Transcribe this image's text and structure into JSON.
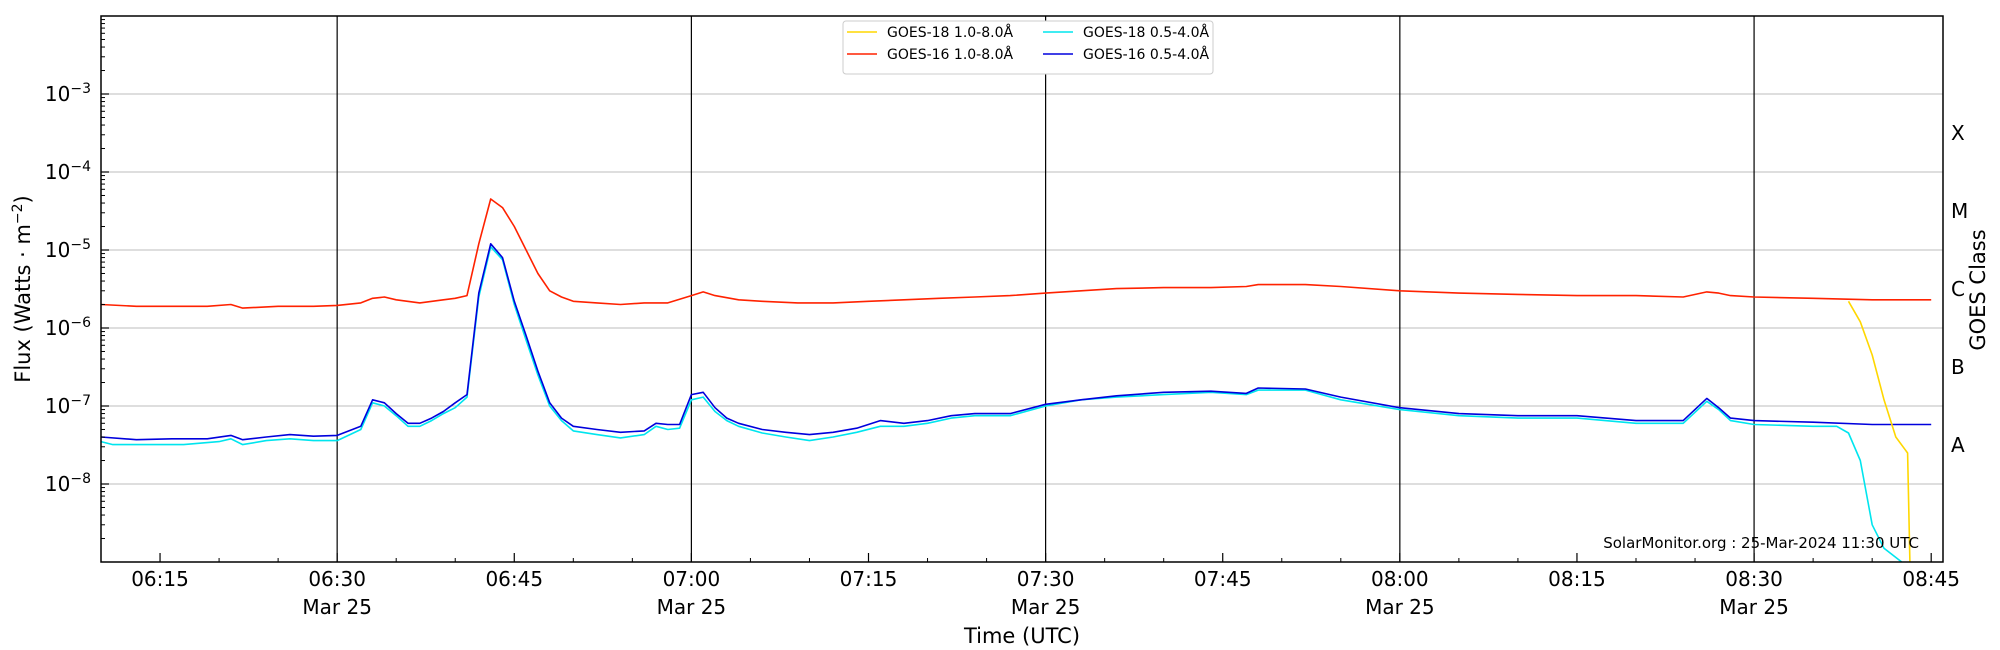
{
  "chart_data": {
    "type": "line",
    "xlabel": "Time (UTC)",
    "ylabel": "Flux (Watts · m",
    "ylabel_sup": "−2",
    "ylabel_close": ")",
    "right_label": "GOES Class",
    "y_scale": "log",
    "ylim": [
      1e-09,
      0.01
    ],
    "xlim": [
      "06:10",
      "08:46"
    ],
    "grid": "horizontal",
    "legend_position": "top-center",
    "annotation": "SolarMonitor.org : 25-Mar-2024 11:30 UTC",
    "date_label": "Mar 25",
    "x_ticks": [
      {
        "time": "06:15",
        "label": "06:15",
        "date": false
      },
      {
        "time": "06:30",
        "label": "06:30",
        "date": true
      },
      {
        "time": "06:45",
        "label": "06:45",
        "date": false
      },
      {
        "time": "07:00",
        "label": "07:00",
        "date": true
      },
      {
        "time": "07:15",
        "label": "07:15",
        "date": false
      },
      {
        "time": "07:30",
        "label": "07:30",
        "date": true
      },
      {
        "time": "07:45",
        "label": "07:45",
        "date": false
      },
      {
        "time": "08:00",
        "label": "08:00",
        "date": true
      },
      {
        "time": "08:15",
        "label": "08:15",
        "date": false
      },
      {
        "time": "08:30",
        "label": "08:30",
        "date": true
      },
      {
        "time": "08:45",
        "label": "08:45",
        "date": false
      }
    ],
    "vlines": [
      "06:30",
      "07:00",
      "07:30",
      "08:00",
      "08:30"
    ],
    "y_ticks": [
      {
        "exp": -3,
        "base": "10",
        "sup": "−3"
      },
      {
        "exp": -4,
        "base": "10",
        "sup": "−4"
      },
      {
        "exp": -5,
        "base": "10",
        "sup": "−5"
      },
      {
        "exp": -6,
        "base": "10",
        "sup": "−6"
      },
      {
        "exp": -7,
        "base": "10",
        "sup": "−7"
      },
      {
        "exp": -8,
        "base": "10",
        "sup": "−8"
      }
    ],
    "goes_classes": [
      {
        "label": "X",
        "exp": -3.5
      },
      {
        "label": "M",
        "exp": -4.5
      },
      {
        "label": "C",
        "exp": -5.5
      },
      {
        "label": "B",
        "exp": -6.5
      },
      {
        "label": "A",
        "exp": -7.5
      }
    ],
    "series": [
      {
        "name": "GOES-18 1.0-8.0Å",
        "color": "#ffd700",
        "points": [
          [
            "08:38",
            2.2e-06
          ],
          [
            "08:39",
            1.2e-06
          ],
          [
            "08:40",
            4.5e-07
          ],
          [
            "08:41",
            1.2e-07
          ],
          [
            "08:42",
            4e-08
          ],
          [
            "08:43",
            2.5e-08
          ],
          [
            "08:43.2",
            1e-09
          ]
        ]
      },
      {
        "name": "GOES-16 1.0-8.0Å",
        "color": "#ff2200",
        "points": [
          [
            "06:10",
            2e-06
          ],
          [
            "06:13",
            1.9e-06
          ],
          [
            "06:16",
            1.9e-06
          ],
          [
            "06:19",
            1.9e-06
          ],
          [
            "06:21",
            2e-06
          ],
          [
            "06:22",
            1.8e-06
          ],
          [
            "06:25",
            1.9e-06
          ],
          [
            "06:28",
            1.9e-06
          ],
          [
            "06:30",
            1.95e-06
          ],
          [
            "06:32",
            2.1e-06
          ],
          [
            "06:33",
            2.4e-06
          ],
          [
            "06:34",
            2.5e-06
          ],
          [
            "06:35",
            2.3e-06
          ],
          [
            "06:37",
            2.1e-06
          ],
          [
            "06:39",
            2.3e-06
          ],
          [
            "06:40",
            2.4e-06
          ],
          [
            "06:41",
            2.6e-06
          ],
          [
            "06:42",
            1.2e-05
          ],
          [
            "06:43",
            4.5e-05
          ],
          [
            "06:44",
            3.5e-05
          ],
          [
            "06:45",
            2e-05
          ],
          [
            "06:46",
            1e-05
          ],
          [
            "06:47",
            5e-06
          ],
          [
            "06:48",
            3e-06
          ],
          [
            "06:49",
            2.5e-06
          ],
          [
            "06:50",
            2.2e-06
          ],
          [
            "06:52",
            2.1e-06
          ],
          [
            "06:54",
            2e-06
          ],
          [
            "06:56",
            2.1e-06
          ],
          [
            "06:58",
            2.1e-06
          ],
          [
            "07:00",
            2.6e-06
          ],
          [
            "07:01",
            2.9e-06
          ],
          [
            "07:02",
            2.6e-06
          ],
          [
            "07:04",
            2.3e-06
          ],
          [
            "07:06",
            2.2e-06
          ],
          [
            "07:09",
            2.1e-06
          ],
          [
            "07:12",
            2.1e-06
          ],
          [
            "07:15",
            2.2e-06
          ],
          [
            "07:18",
            2.3e-06
          ],
          [
            "07:21",
            2.4e-06
          ],
          [
            "07:24",
            2.5e-06
          ],
          [
            "07:27",
            2.6e-06
          ],
          [
            "07:30",
            2.8e-06
          ],
          [
            "07:33",
            3e-06
          ],
          [
            "07:36",
            3.2e-06
          ],
          [
            "07:40",
            3.3e-06
          ],
          [
            "07:44",
            3.3e-06
          ],
          [
            "07:47",
            3.4e-06
          ],
          [
            "07:48",
            3.6e-06
          ],
          [
            "07:52",
            3.6e-06
          ],
          [
            "07:55",
            3.4e-06
          ],
          [
            "08:00",
            3e-06
          ],
          [
            "08:05",
            2.8e-06
          ],
          [
            "08:10",
            2.7e-06
          ],
          [
            "08:15",
            2.6e-06
          ],
          [
            "08:20",
            2.6e-06
          ],
          [
            "08:24",
            2.5e-06
          ],
          [
            "08:26",
            2.9e-06
          ],
          [
            "08:27",
            2.8e-06
          ],
          [
            "08:28",
            2.6e-06
          ],
          [
            "08:30",
            2.5e-06
          ],
          [
            "08:35",
            2.4e-06
          ],
          [
            "08:40",
            2.3e-06
          ],
          [
            "08:45",
            2.3e-06
          ]
        ]
      },
      {
        "name": "GOES-18 0.5-4.0Å",
        "color": "#00e5ee",
        "points": [
          [
            "06:10",
            3.5e-08
          ],
          [
            "06:11",
            3.2e-08
          ],
          [
            "06:14",
            3.2e-08
          ],
          [
            "06:17",
            3.2e-08
          ],
          [
            "06:20",
            3.5e-08
          ],
          [
            "06:21",
            3.8e-08
          ],
          [
            "06:22",
            3.2e-08
          ],
          [
            "06:24",
            3.6e-08
          ],
          [
            "06:26",
            3.8e-08
          ],
          [
            "06:28",
            3.6e-08
          ],
          [
            "06:30",
            3.6e-08
          ],
          [
            "06:32",
            5e-08
          ],
          [
            "06:33",
            1.1e-07
          ],
          [
            "06:34",
            1e-07
          ],
          [
            "06:35",
            7.5e-08
          ],
          [
            "06:36",
            5.5e-08
          ],
          [
            "06:37",
            5.5e-08
          ],
          [
            "06:38",
            6.5e-08
          ],
          [
            "06:39",
            8e-08
          ],
          [
            "06:40",
            9.5e-08
          ],
          [
            "06:41",
            1.3e-07
          ],
          [
            "06:42",
            2.5e-06
          ],
          [
            "06:43",
            1.1e-05
          ],
          [
            "06:44",
            7.5e-06
          ],
          [
            "06:45",
            2e-06
          ],
          [
            "06:46",
            7e-07
          ],
          [
            "06:47",
            2.5e-07
          ],
          [
            "06:48",
            1e-07
          ],
          [
            "06:49",
            6.5e-08
          ],
          [
            "06:50",
            4.8e-08
          ],
          [
            "06:52",
            4.3e-08
          ],
          [
            "06:54",
            3.9e-08
          ],
          [
            "06:56",
            4.3e-08
          ],
          [
            "06:57",
            5.5e-08
          ],
          [
            "06:58",
            5e-08
          ],
          [
            "06:59",
            5.2e-08
          ],
          [
            "07:00",
            1.2e-07
          ],
          [
            "07:01",
            1.3e-07
          ],
          [
            "07:02",
            8.5e-08
          ],
          [
            "07:03",
            6.5e-08
          ],
          [
            "07:04",
            5.5e-08
          ],
          [
            "07:06",
            4.5e-08
          ],
          [
            "07:08",
            4e-08
          ],
          [
            "07:10",
            3.6e-08
          ],
          [
            "07:12",
            4e-08
          ],
          [
            "07:14",
            4.6e-08
          ],
          [
            "07:16",
            5.5e-08
          ],
          [
            "07:18",
            5.5e-08
          ],
          [
            "07:20",
            6e-08
          ],
          [
            "07:22",
            7e-08
          ],
          [
            "07:24",
            7.5e-08
          ],
          [
            "07:27",
            7.5e-08
          ],
          [
            "07:30",
            1e-07
          ],
          [
            "07:33",
            1.2e-07
          ],
          [
            "07:36",
            1.3e-07
          ],
          [
            "07:40",
            1.4e-07
          ],
          [
            "07:44",
            1.5e-07
          ],
          [
            "07:47",
            1.4e-07
          ],
          [
            "07:48",
            1.6e-07
          ],
          [
            "07:52",
            1.6e-07
          ],
          [
            "07:55",
            1.2e-07
          ],
          [
            "08:00",
            9e-08
          ],
          [
            "08:05",
            7.5e-08
          ],
          [
            "08:10",
            7e-08
          ],
          [
            "08:15",
            7e-08
          ],
          [
            "08:20",
            6e-08
          ],
          [
            "08:24",
            6e-08
          ],
          [
            "08:26",
            1.15e-07
          ],
          [
            "08:27",
            9e-08
          ],
          [
            "08:28",
            6.5e-08
          ],
          [
            "08:30",
            5.8e-08
          ],
          [
            "08:35",
            5.5e-08
          ],
          [
            "08:37",
            5.5e-08
          ],
          [
            "08:38",
            4.5e-08
          ],
          [
            "08:39",
            2e-08
          ],
          [
            "08:40",
            3e-09
          ],
          [
            "08:41",
            1.5e-09
          ],
          [
            "08:42.5",
            1e-09
          ]
        ]
      },
      {
        "name": "GOES-16 0.5-4.0Å",
        "color": "#0000dd",
        "points": [
          [
            "06:10",
            4e-08
          ],
          [
            "06:13",
            3.7e-08
          ],
          [
            "06:16",
            3.8e-08
          ],
          [
            "06:19",
            3.8e-08
          ],
          [
            "06:21",
            4.2e-08
          ],
          [
            "06:22",
            3.7e-08
          ],
          [
            "06:24",
            4e-08
          ],
          [
            "06:26",
            4.3e-08
          ],
          [
            "06:28",
            4.1e-08
          ],
          [
            "06:30",
            4.2e-08
          ],
          [
            "06:32",
            5.5e-08
          ],
          [
            "06:33",
            1.2e-07
          ],
          [
            "06:34",
            1.1e-07
          ],
          [
            "06:35",
            8e-08
          ],
          [
            "06:36",
            6e-08
          ],
          [
            "06:37",
            6e-08
          ],
          [
            "06:38",
            7e-08
          ],
          [
            "06:39",
            8.5e-08
          ],
          [
            "06:40",
            1.1e-07
          ],
          [
            "06:41",
            1.4e-07
          ],
          [
            "06:42",
            2.8e-06
          ],
          [
            "06:43",
            1.2e-05
          ],
          [
            "06:44",
            8e-06
          ],
          [
            "06:45",
            2.2e-06
          ],
          [
            "06:46",
            8e-07
          ],
          [
            "06:47",
            2.8e-07
          ],
          [
            "06:48",
            1.1e-07
          ],
          [
            "06:49",
            7e-08
          ],
          [
            "06:50",
            5.5e-08
          ],
          [
            "06:52",
            5e-08
          ],
          [
            "06:54",
            4.6e-08
          ],
          [
            "06:56",
            4.8e-08
          ],
          [
            "06:57",
            6e-08
          ],
          [
            "06:58",
            5.8e-08
          ],
          [
            "06:59",
            5.8e-08
          ],
          [
            "07:00",
            1.4e-07
          ],
          [
            "07:01",
            1.5e-07
          ],
          [
            "07:02",
            9.5e-08
          ],
          [
            "07:03",
            7e-08
          ],
          [
            "07:04",
            6e-08
          ],
          [
            "07:06",
            5e-08
          ],
          [
            "07:08",
            4.6e-08
          ],
          [
            "07:10",
            4.3e-08
          ],
          [
            "07:12",
            4.6e-08
          ],
          [
            "07:14",
            5.2e-08
          ],
          [
            "07:16",
            6.5e-08
          ],
          [
            "07:18",
            6e-08
          ],
          [
            "07:20",
            6.5e-08
          ],
          [
            "07:22",
            7.5e-08
          ],
          [
            "07:24",
            8e-08
          ],
          [
            "07:27",
            8e-08
          ],
          [
            "07:30",
            1.05e-07
          ],
          [
            "07:33",
            1.2e-07
          ],
          [
            "07:36",
            1.35e-07
          ],
          [
            "07:40",
            1.5e-07
          ],
          [
            "07:44",
            1.55e-07
          ],
          [
            "07:47",
            1.45e-07
          ],
          [
            "07:48",
            1.7e-07
          ],
          [
            "07:52",
            1.65e-07
          ],
          [
            "07:55",
            1.3e-07
          ],
          [
            "08:00",
            9.5e-08
          ],
          [
            "08:05",
            8e-08
          ],
          [
            "08:10",
            7.5e-08
          ],
          [
            "08:15",
            7.5e-08
          ],
          [
            "08:20",
            6.5e-08
          ],
          [
            "08:24",
            6.5e-08
          ],
          [
            "08:26",
            1.25e-07
          ],
          [
            "08:27",
            9.5e-08
          ],
          [
            "08:28",
            7e-08
          ],
          [
            "08:30",
            6.5e-08
          ],
          [
            "08:35",
            6.2e-08
          ],
          [
            "08:40",
            5.8e-08
          ],
          [
            "08:45",
            5.8e-08
          ]
        ]
      }
    ]
  }
}
